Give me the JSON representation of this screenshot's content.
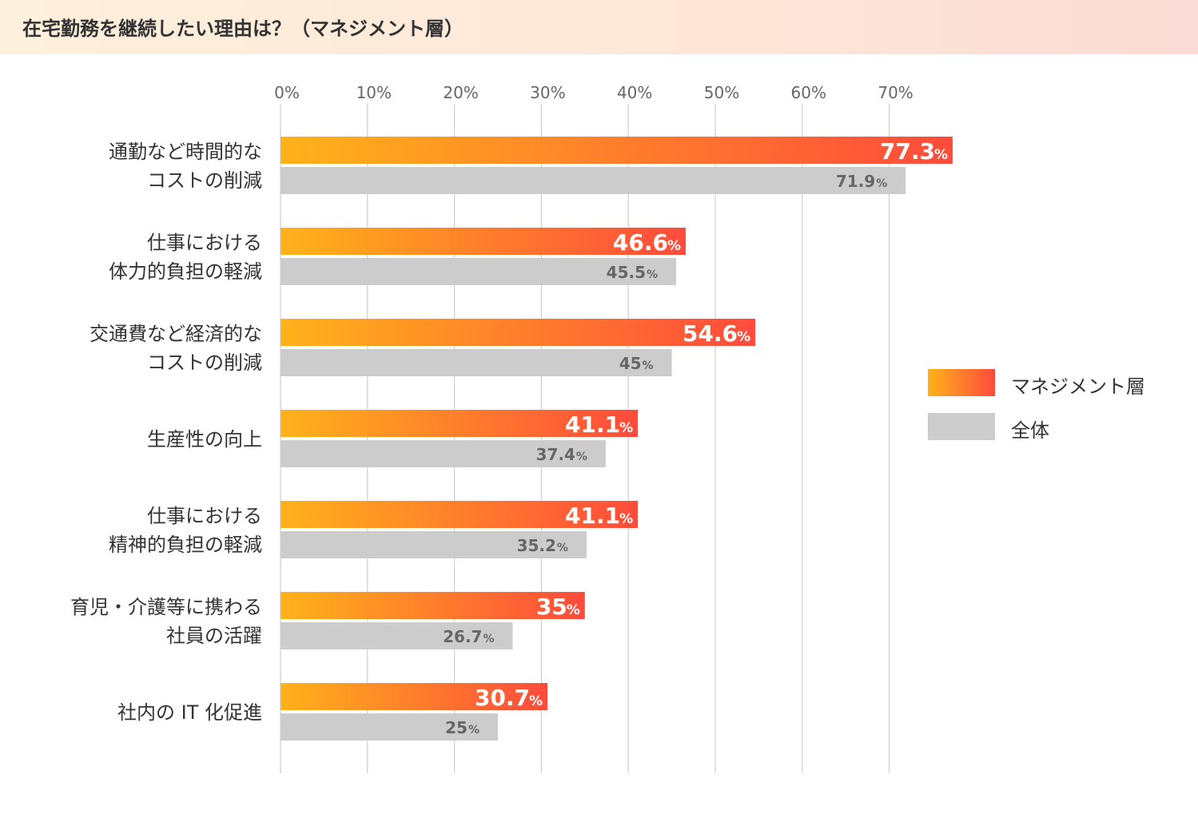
{
  "title": "在宅勤務を継続したい理由は？（マネジメント層）",
  "colors": {
    "management_start": "#ffb21a",
    "management_end": "#ff4b3c",
    "overall": "#cccccc",
    "grid": "#cfcfcf",
    "label_text": "#333333",
    "tick_text": "#666666",
    "overall_value_text": "#666666",
    "management_value_text": "#ffffff"
  },
  "legend": {
    "position": "right",
    "items": [
      {
        "label": "マネジメント層"
      },
      {
        "label": "全体"
      }
    ]
  },
  "chart_data": {
    "type": "bar",
    "orientation": "horizontal",
    "title": "在宅勤務を継続したい理由は？（マネジメント層）",
    "xlim": [
      0,
      77.3
    ],
    "xticks": [
      "0%",
      "10%",
      "20%",
      "30%",
      "40%",
      "50%",
      "60%",
      "70%"
    ],
    "xtick_values": [
      0,
      10,
      20,
      30,
      40,
      50,
      60,
      70
    ],
    "grid": "vertical",
    "value_suffix": "%",
    "categories": [
      [
        "通勤など時間的な",
        "コストの削減"
      ],
      [
        "仕事における",
        "体力的負担の軽減"
      ],
      [
        "交通費など経済的な",
        "コストの削減"
      ],
      [
        "生産性の向上"
      ],
      [
        "仕事における",
        "精神的負担の軽減"
      ],
      [
        "育児・介護等に携わる",
        "社員の活躍"
      ],
      [
        "社内の IT 化促進"
      ]
    ],
    "series": [
      {
        "name": "マネジメント層",
        "values": [
          77.3,
          46.6,
          54.6,
          41.1,
          41.1,
          35,
          30.7
        ],
        "labels": [
          "77.3",
          "46.6",
          "54.6",
          "41.1",
          "41.1",
          "35",
          "30.7"
        ]
      },
      {
        "name": "全体",
        "values": [
          71.9,
          45.5,
          45,
          37.4,
          35.2,
          26.7,
          25
        ],
        "labels": [
          "71.9",
          "45.5",
          "45",
          "37.4",
          "35.2",
          "26.7",
          "25"
        ]
      }
    ]
  }
}
